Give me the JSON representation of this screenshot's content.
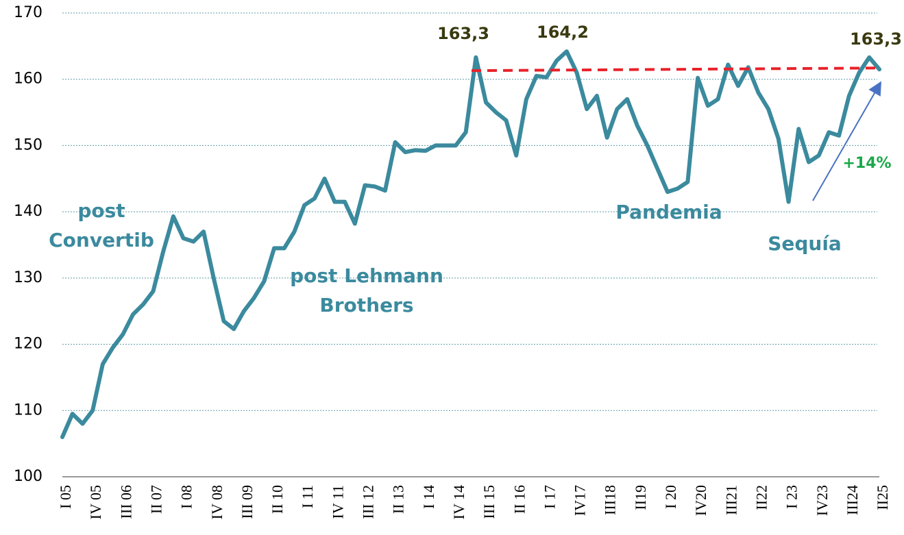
{
  "chart_data": {
    "type": "line",
    "categories": [
      "I 05",
      null,
      null,
      "IV 05",
      null,
      null,
      "III 06",
      null,
      null,
      "II 07",
      null,
      null,
      "I 08",
      null,
      null,
      "IV 08",
      null,
      null,
      "III 09",
      null,
      null,
      "II 10",
      null,
      null,
      "I 11",
      null,
      null,
      "IV 11",
      null,
      null,
      "III 12",
      null,
      null,
      "II 13",
      null,
      null,
      "I 14",
      null,
      null,
      "IV 14",
      null,
      null,
      "III 15",
      null,
      null,
      "II 16",
      null,
      null,
      "I 17",
      null,
      null,
      "IV17",
      null,
      null,
      "III18",
      null,
      null,
      "II19",
      null,
      null,
      "I 20",
      null,
      null,
      "IV20",
      null,
      null,
      "III21",
      null,
      null,
      "II22",
      null,
      null,
      "I 23",
      null,
      null,
      "IV23",
      null,
      null,
      "III24",
      null,
      null,
      "II25"
    ],
    "series": [
      {
        "name": null,
        "color": "#3b8a9e",
        "values": [
          106,
          109.5,
          108,
          110,
          117,
          119.5,
          121.5,
          124.5,
          126,
          128,
          134,
          139.3,
          136,
          135.5,
          137,
          130,
          123.5,
          122.3,
          125,
          127,
          129.5,
          134.5,
          134.5,
          137,
          141,
          142,
          145,
          141.5,
          141.5,
          138.2,
          144,
          143.8,
          143.2,
          150.5,
          149,
          149.3,
          149.2,
          150,
          150,
          150,
          152,
          163.3,
          156.5,
          155,
          153.8,
          148.5,
          157,
          160.5,
          160.3,
          162.8,
          164.2,
          161,
          155.5,
          157.5,
          151.2,
          155.5,
          157,
          153,
          150,
          146.5,
          143,
          143.5,
          144.5,
          160.2,
          156,
          157,
          162.2,
          159,
          161.8,
          158,
          155.5,
          151,
          141.5,
          152.5,
          147.5,
          148.5,
          152,
          151.5,
          157.5,
          161,
          163.3,
          161.5
        ]
      }
    ],
    "ylim": [
      100,
      170
    ],
    "yticks": [
      100,
      110,
      120,
      130,
      140,
      150,
      160,
      170
    ],
    "grid": true,
    "point_labels": [
      "163,3",
      "164,2",
      "163,3"
    ],
    "annotations": [
      {
        "text": [
          "post",
          "Convertib"
        ]
      },
      {
        "text": [
          "post Lehmann",
          "Brothers"
        ]
      },
      {
        "text": [
          "Pandemia"
        ]
      },
      {
        "text": [
          "Sequía"
        ]
      },
      {
        "text": [
          "+14%"
        ],
        "color": "#1aa84a"
      }
    ],
    "reference_line": {
      "values": [
        161.3,
        161.7
      ],
      "color": "#e8222a"
    }
  }
}
